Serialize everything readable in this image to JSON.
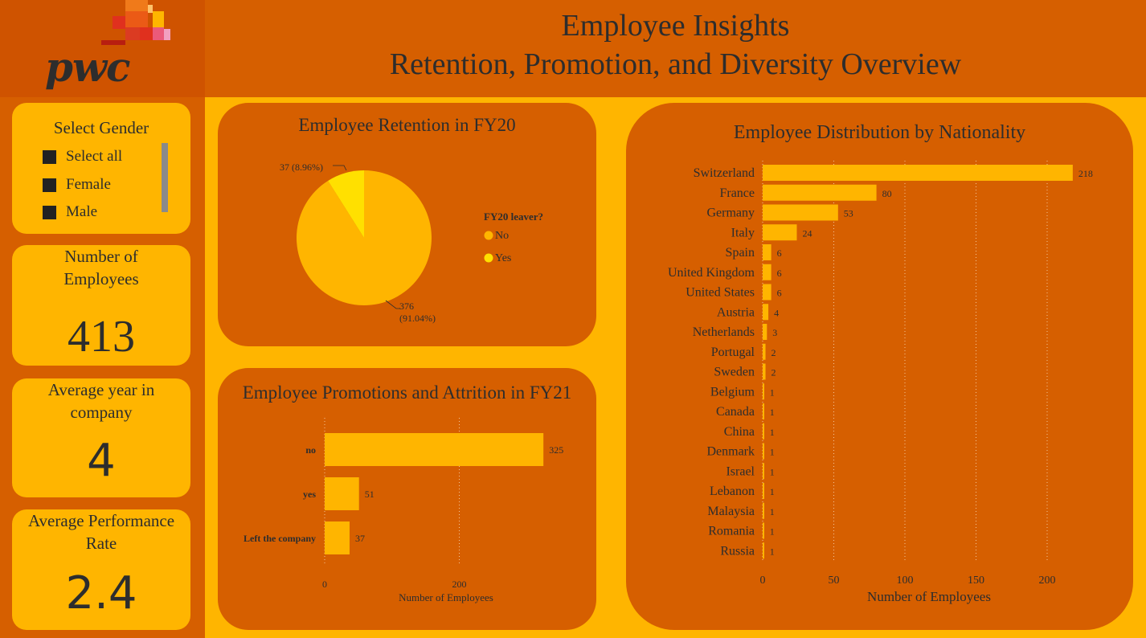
{
  "header": {
    "logo": "pwc",
    "title_line1": "Employee Insights",
    "title_line2": "Retention, Promotion, and Diversity Overview"
  },
  "slicer": {
    "title": "Select Gender",
    "options": [
      "Select all",
      "Female",
      "Male"
    ]
  },
  "kpis": {
    "employees": {
      "label": "Number of Employees",
      "value": "413"
    },
    "avg_year": {
      "label": "Average year in company",
      "value": "4"
    },
    "avg_perf": {
      "label": "Average Performance Rate",
      "value": "2.4"
    }
  },
  "colors": {
    "background": "#FFB500",
    "panel": "#D65F00",
    "bar": "#FFB500",
    "pie_no": "#FFB500",
    "pie_yes": "#FFE000"
  },
  "chart_data": [
    {
      "type": "pie",
      "title": "Employee Retention in FY20",
      "legend_title": "FY20 leaver?",
      "categories": [
        "No",
        "Yes"
      ],
      "values": [
        376,
        37
      ],
      "data_labels": [
        "376 (91.04%)",
        "37 (8.96%)"
      ],
      "legend_position": "right"
    },
    {
      "type": "bar",
      "orientation": "horizontal",
      "title": "Employee Promotions and Attrition in FY21",
      "categories": [
        "no",
        "yes",
        "Left the company"
      ],
      "values": [
        325,
        51,
        37
      ],
      "xlabel": "Number of Employees",
      "ylabel": "",
      "xlim": [
        0,
        400
      ],
      "xticks": [
        0,
        200
      ],
      "grid": true
    },
    {
      "type": "bar",
      "orientation": "horizontal",
      "title": "Employee Distribution by Nationality",
      "categories": [
        "Switzerland",
        "France",
        "Germany",
        "Italy",
        "Spain",
        "United Kingdom",
        "United States",
        "Austria",
        "Netherlands",
        "Portugal",
        "Sweden",
        "Belgium",
        "Canada",
        "China",
        "Denmark",
        "Israel",
        "Lebanon",
        "Malaysia",
        "Romania",
        "Russia"
      ],
      "values": [
        218,
        80,
        53,
        24,
        6,
        6,
        6,
        4,
        3,
        2,
        2,
        1,
        1,
        1,
        1,
        1,
        1,
        1,
        1,
        1
      ],
      "xlabel": "Number of Employees",
      "ylabel": "",
      "xlim": [
        0,
        225
      ],
      "xticks": [
        0,
        50,
        100,
        150,
        200
      ],
      "grid": true
    }
  ]
}
